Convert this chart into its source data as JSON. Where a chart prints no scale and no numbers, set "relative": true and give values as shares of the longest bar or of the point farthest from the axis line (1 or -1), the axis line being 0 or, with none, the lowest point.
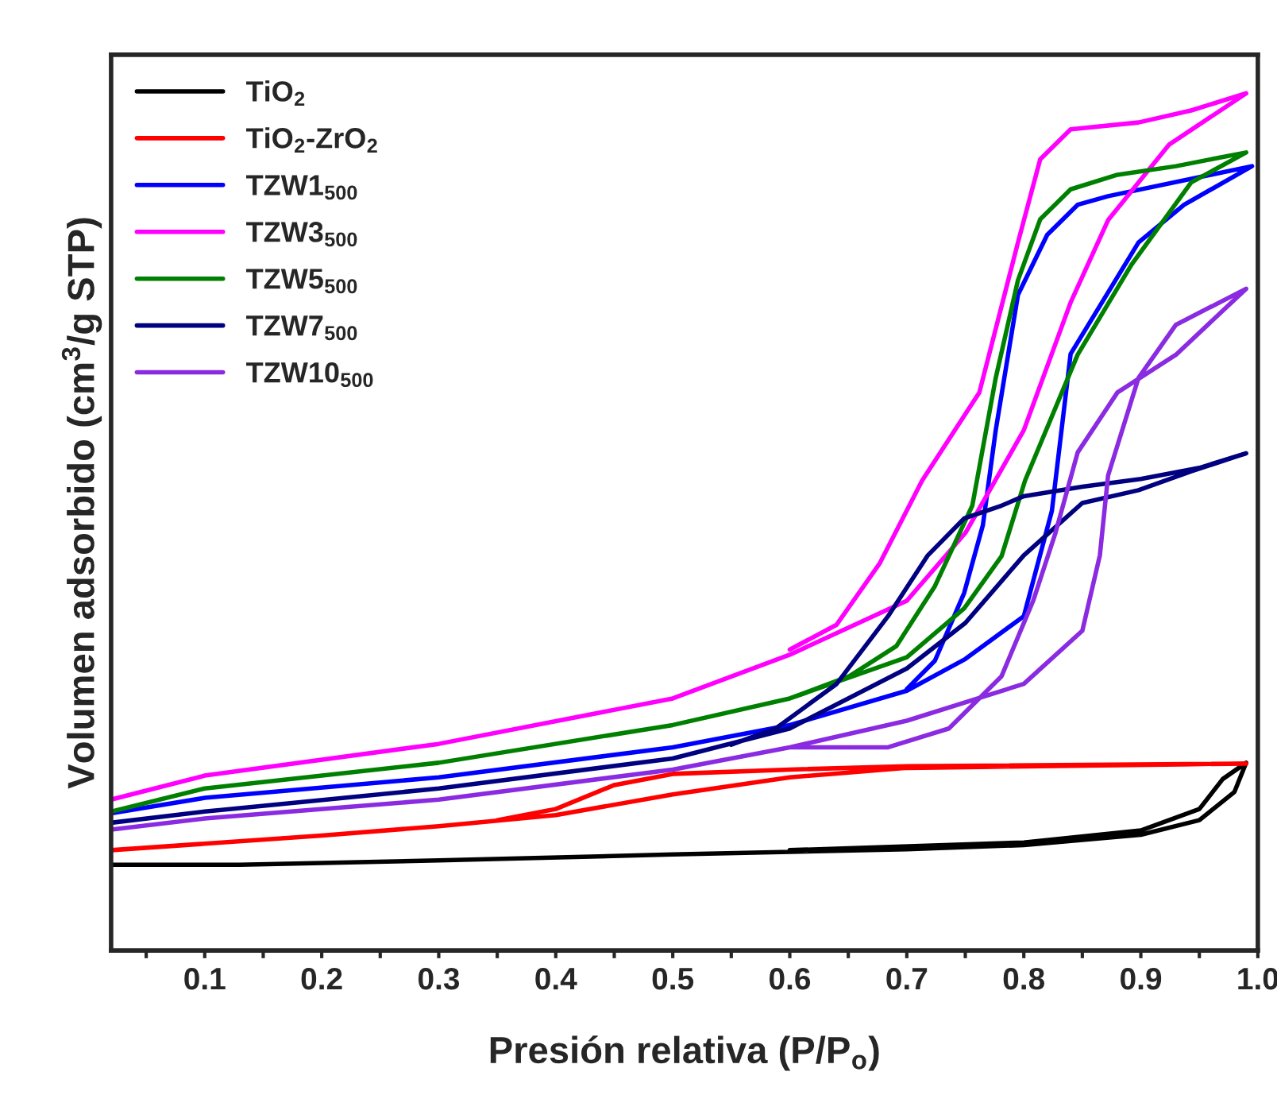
{
  "chart_data": {
    "type": "line",
    "relative": true,
    "xlabel": "Presión relativa (P/P$_{o}$)",
    "ylabel": "Volumen adsorbido (cm$^{3}$/g STP)",
    "xlim": [
      0.02,
      1.0
    ],
    "xticks": [
      {
        "value": 0.05,
        "label": null
      },
      0.1,
      {
        "value": 0.15,
        "label": null
      },
      0.2,
      {
        "value": 0.25,
        "label": null
      },
      0.3,
      {
        "value": 0.35,
        "label": null
      },
      0.4,
      {
        "value": 0.45,
        "label": null
      },
      0.5,
      {
        "value": 0.55,
        "label": null
      },
      0.6,
      {
        "value": 0.65,
        "label": null
      },
      0.7,
      {
        "value": 0.75,
        "label": null
      },
      0.8,
      {
        "value": 0.85,
        "label": null
      },
      0.9,
      {
        "value": 0.95,
        "label": null
      },
      {
        "value": 1.0,
        "label": "1.0"
      }
    ],
    "legend": "top left",
    "grid": false,
    "marker": "none",
    "line_style": "solid",
    "series": [
      {
        "name": "TiO$_{2}$",
        "color": "#000000",
        "x": [
          0.02,
          0.13,
          0.3,
          0.5,
          0.7,
          0.8,
          0.9,
          0.95,
          0.98,
          0.99,
          0.97,
          0.95,
          0.9,
          0.8,
          0.6
        ],
        "values": [
          0.1,
          0.1,
          0.105,
          0.112,
          0.118,
          0.123,
          0.135,
          0.152,
          0.185,
          0.219,
          0.2,
          0.165,
          0.14,
          0.126,
          0.117
        ]
      },
      {
        "name": "TiO$_{2}$-ZrO$_{2}$",
        "color": "#ff0000",
        "x": [
          0.02,
          0.2,
          0.3,
          0.4,
          0.5,
          0.6,
          0.7,
          0.99,
          0.7,
          0.6,
          0.5,
          0.45,
          0.4,
          0.35
        ],
        "values": [
          0.117,
          0.134,
          0.145,
          0.158,
          0.182,
          0.202,
          0.213,
          0.218,
          0.215,
          0.211,
          0.206,
          0.193,
          0.165,
          0.152
        ]
      },
      {
        "name": "TZW1$_{500}$",
        "color": "#0000ff",
        "x": [
          0.02,
          0.1,
          0.3,
          0.5,
          0.6,
          0.7,
          0.75,
          0.8,
          0.824,
          0.84,
          0.898,
          0.937,
          0.995,
          0.872,
          0.846,
          0.82,
          0.795,
          0.776,
          0.765,
          0.749,
          0.724,
          0.7
        ],
        "values": [
          0.16,
          0.178,
          0.202,
          0.237,
          0.263,
          0.303,
          0.34,
          0.39,
          0.513,
          0.696,
          0.826,
          0.87,
          0.915,
          0.88,
          0.87,
          0.835,
          0.765,
          0.607,
          0.496,
          0.417,
          0.338,
          0.305
        ]
      },
      {
        "name": "TZW3$_{500}$",
        "color": "#ff00ff",
        "x": [
          0.02,
          0.1,
          0.3,
          0.5,
          0.6,
          0.7,
          0.75,
          0.8,
          0.84,
          0.872,
          0.924,
          0.99,
          0.943,
          0.898,
          0.84,
          0.814,
          0.795,
          0.762,
          0.713,
          0.677,
          0.64,
          0.6
        ],
        "values": [
          0.176,
          0.204,
          0.241,
          0.294,
          0.345,
          0.408,
          0.487,
          0.607,
          0.756,
          0.852,
          0.94,
          1.0,
          0.98,
          0.966,
          0.958,
          0.923,
          0.826,
          0.651,
          0.548,
          0.452,
          0.38,
          0.351
        ]
      },
      {
        "name": "TZW5$_{500}$",
        "color": "#008000",
        "x": [
          0.02,
          0.1,
          0.3,
          0.5,
          0.6,
          0.7,
          0.749,
          0.781,
          0.801,
          0.846,
          0.892,
          0.943,
          0.99,
          0.93,
          0.88,
          0.84,
          0.814,
          0.795,
          0.776,
          0.756,
          0.724,
          0.691,
          0.651,
          0.6
        ],
        "values": [
          0.162,
          0.189,
          0.219,
          0.263,
          0.294,
          0.342,
          0.399,
          0.46,
          0.548,
          0.695,
          0.8,
          0.896,
          0.931,
          0.915,
          0.905,
          0.888,
          0.853,
          0.782,
          0.668,
          0.519,
          0.425,
          0.355,
          0.32,
          0.294
        ]
      },
      {
        "name": "TZW7$_{500}$",
        "color": "#000080",
        "x": [
          0.02,
          0.1,
          0.3,
          0.5,
          0.6,
          0.7,
          0.75,
          0.8,
          0.85,
          0.898,
          0.943,
          0.99,
          0.95,
          0.9,
          0.85,
          0.8,
          0.781,
          0.749,
          0.718,
          0.684,
          0.64,
          0.588,
          0.55
        ],
        "values": [
          0.149,
          0.162,
          0.189,
          0.224,
          0.259,
          0.329,
          0.382,
          0.461,
          0.522,
          0.537,
          0.559,
          0.58,
          0.563,
          0.55,
          0.541,
          0.53,
          0.519,
          0.504,
          0.461,
          0.39,
          0.311,
          0.259,
          0.24
        ]
      },
      {
        "name": "TZW10$_{500}$",
        "color": "#8a2be2",
        "x": [
          0.02,
          0.1,
          0.3,
          0.5,
          0.6,
          0.7,
          0.8,
          0.85,
          0.865,
          0.872,
          0.898,
          0.93,
          0.99,
          0.93,
          0.88,
          0.846,
          0.827,
          0.808,
          0.781,
          0.736,
          0.684,
          0.6
        ],
        "values": [
          0.141,
          0.154,
          0.176,
          0.211,
          0.237,
          0.268,
          0.311,
          0.373,
          0.461,
          0.554,
          0.668,
          0.73,
          0.772,
          0.695,
          0.651,
          0.581,
          0.487,
          0.408,
          0.32,
          0.259,
          0.237,
          0.237
        ]
      }
    ]
  }
}
